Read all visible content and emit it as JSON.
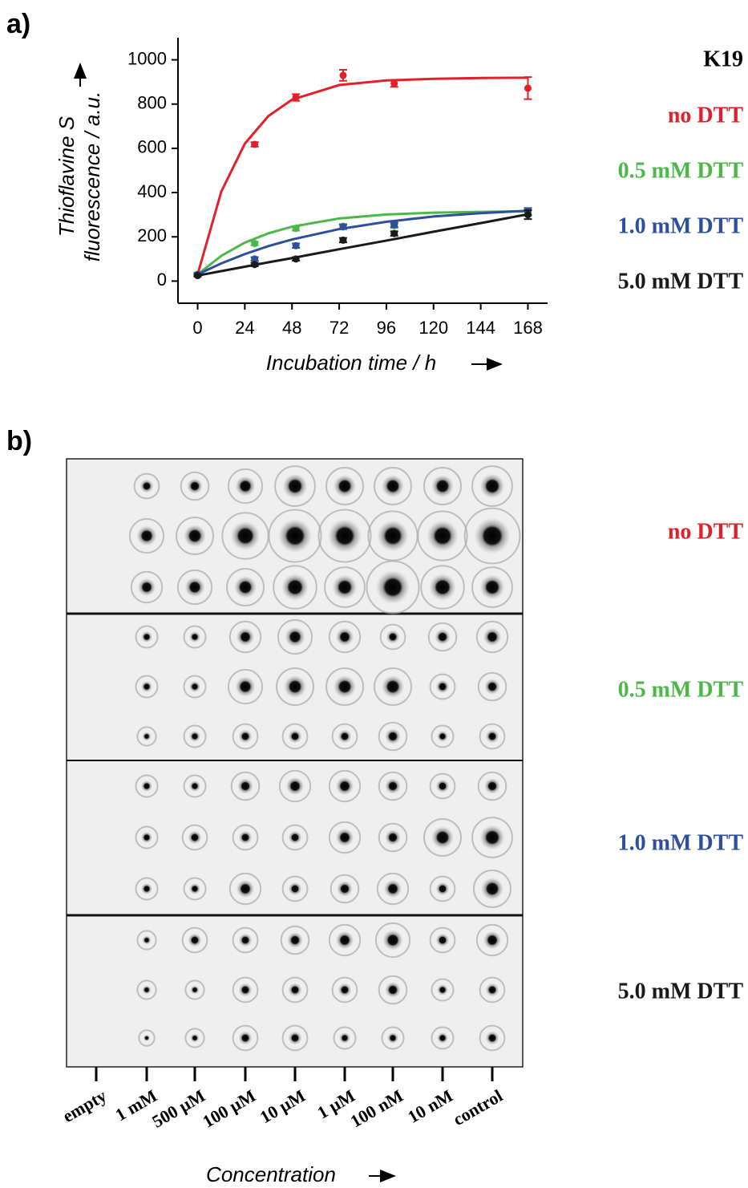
{
  "chart_data": {
    "type": "scatter",
    "panel_label": "a)",
    "title": "K19",
    "x_label": "Incubation time / h",
    "y_label": [
      "Thioflavine S",
      "fluorescence / a.u."
    ],
    "xlim": [
      -10,
      178
    ],
    "xticks": [
      0,
      24,
      48,
      72,
      96,
      120,
      144,
      168
    ],
    "ylim": [
      -100,
      1100
    ],
    "yticks": [
      0,
      200,
      400,
      600,
      800,
      1000
    ],
    "x": [
      0,
      29,
      50,
      74,
      100,
      168
    ],
    "fit_x": [
      0,
      12,
      24,
      36,
      48,
      72,
      96,
      120,
      144,
      168
    ],
    "series": [
      {
        "name": "no DTT",
        "color": "#e3202a",
        "values": [
          30,
          618,
          830,
          930,
          893,
          872
        ],
        "errors": [
          8,
          10,
          15,
          25,
          15,
          50
        ],
        "fit_values": [
          30,
          404,
          621,
          746,
          820,
          886,
          907,
          914,
          918,
          919
        ]
      },
      {
        "name": "0.5 mM DTT",
        "color": "#4cb848",
        "values": [
          30,
          170,
          238,
          248,
          250,
          310
        ],
        "errors": [
          5,
          8,
          10,
          10,
          10,
          15
        ],
        "fit_values": [
          30,
          114,
          174,
          216,
          246,
          283,
          301,
          309,
          313,
          316
        ]
      },
      {
        "name": "1.0 mM DTT",
        "color": "#2e4f9e",
        "values": [
          30,
          100,
          160,
          245,
          255,
          315
        ],
        "errors": [
          5,
          8,
          10,
          10,
          10,
          15
        ],
        "fit_values": [
          30,
          80,
          122,
          158,
          188,
          235,
          268,
          292,
          307,
          318
        ]
      },
      {
        "name": "5.0 mM DTT",
        "color": "#1a1a1a",
        "values": [
          25,
          75,
          100,
          185,
          215,
          300
        ],
        "errors": [
          5,
          8,
          8,
          10,
          10,
          20
        ],
        "fit_values": [
          25,
          45,
          65,
          85,
          104,
          144,
          183,
          223,
          262,
          302
        ]
      }
    ]
  },
  "blot": {
    "panel_label": "b)",
    "lane_labels": [
      "empty",
      "1 mM",
      "500 µM",
      "100 µM",
      "10 µM",
      "1 µM",
      "100 nM",
      "10 nM",
      "control"
    ],
    "group_labels": [
      {
        "text": "no DTT",
        "color": "#e3202a"
      },
      {
        "text": "0.5 mM DTT",
        "color": "#4cb848"
      },
      {
        "text": "1.0 mM DTT",
        "color": "#2e4f9e"
      },
      {
        "text": "5.0 mM DTT",
        "color": "#1a1a1a"
      }
    ],
    "x_label": "Concentration"
  }
}
